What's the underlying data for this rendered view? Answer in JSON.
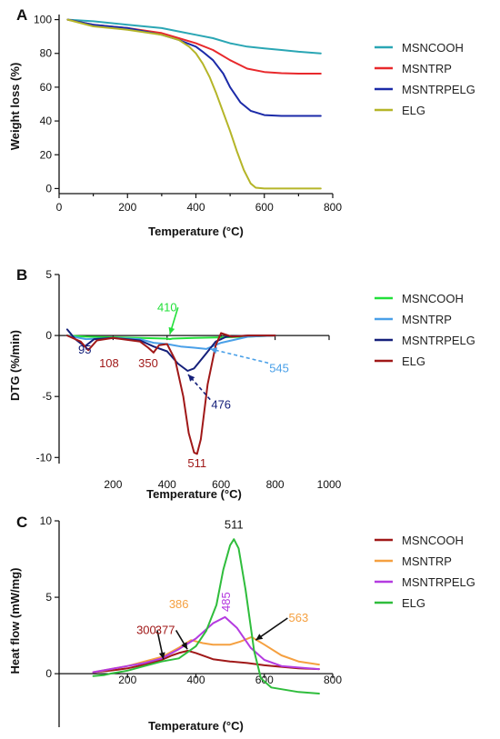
{
  "chart_data": [
    {
      "panel": "A",
      "type": "line",
      "xlabel": "Temperature (°C)",
      "ylabel": "Weight loss (%)",
      "xlim": [
        0,
        800
      ],
      "ylim": [
        -3,
        103
      ],
      "xticks": [
        0,
        200,
        400,
        600,
        800
      ],
      "yticks": [
        0,
        20,
        40,
        60,
        80,
        100
      ],
      "legend": "right",
      "series": [
        {
          "name": "MSNCOOH",
          "color": "#2aa6b4",
          "x": [
            25,
            100,
            200,
            300,
            350,
            400,
            450,
            500,
            550,
            600,
            650,
            700,
            765
          ],
          "y": [
            100,
            99,
            97,
            95,
            93,
            91,
            89,
            86,
            84,
            83,
            82,
            81,
            80
          ]
        },
        {
          "name": "MSNTRP",
          "color": "#e8292c",
          "x": [
            25,
            100,
            200,
            300,
            350,
            400,
            450,
            500,
            550,
            600,
            650,
            700,
            765
          ],
          "y": [
            100,
            97,
            95,
            92,
            89,
            86,
            82,
            76,
            71,
            69,
            68.3,
            68,
            68
          ]
        },
        {
          "name": "MSNTRPELG",
          "color": "#1b2aa8",
          "x": [
            25,
            100,
            200,
            300,
            350,
            400,
            420,
            450,
            480,
            500,
            530,
            560,
            600,
            650,
            700,
            765
          ],
          "y": [
            100,
            97,
            95,
            91,
            88,
            84,
            81,
            76,
            68,
            60,
            51,
            46,
            43.5,
            43,
            43,
            43
          ]
        },
        {
          "name": "ELG",
          "color": "#b5b528",
          "x": [
            25,
            100,
            200,
            300,
            350,
            380,
            400,
            420,
            440,
            460,
            480,
            500,
            520,
            540,
            560,
            575,
            600,
            700,
            765
          ],
          "y": [
            100,
            96,
            94,
            91,
            88,
            84,
            80,
            74,
            66,
            56,
            45,
            34,
            22,
            11,
            3,
            0.5,
            0,
            0,
            0
          ]
        }
      ]
    },
    {
      "panel": "B",
      "type": "line",
      "xlabel": "Temperature (°C)",
      "ylabel": "DTG (%/min)",
      "xlim": [
        0,
        1000
      ],
      "ylim": [
        -10.5,
        5
      ],
      "xticks": [
        200,
        400,
        600,
        800,
        1000
      ],
      "yticks": [
        -10,
        -5,
        0,
        5
      ],
      "legend": "right",
      "series": [
        {
          "name": "MSNCOOH",
          "color": "#22e03a",
          "x": [
            30,
            100,
            200,
            300,
            400,
            410,
            420,
            500,
            600,
            700,
            800
          ],
          "y": [
            0,
            -0.1,
            -0.15,
            -0.2,
            -0.25,
            -0.3,
            -0.25,
            -0.2,
            -0.15,
            -0.1,
            0
          ]
        },
        {
          "name": "MSNTRP",
          "color": "#4aa0e8",
          "x": [
            30,
            100,
            200,
            300,
            350,
            400,
            450,
            500,
            545,
            600,
            700,
            800
          ],
          "y": [
            0,
            -0.3,
            -0.2,
            -0.3,
            -0.6,
            -0.7,
            -0.9,
            -1.0,
            -1.1,
            -0.6,
            -0.1,
            0
          ]
        },
        {
          "name": "MSNTRPELG",
          "color": "#15207a",
          "x": [
            30,
            60,
            95,
            130,
            200,
            300,
            350,
            400,
            440,
            476,
            500,
            540,
            580,
            620,
            700,
            800
          ],
          "y": [
            0.5,
            -0.3,
            -0.9,
            -0.3,
            -0.2,
            -0.4,
            -0.9,
            -1.3,
            -2.3,
            -2.9,
            -2.7,
            -1.6,
            -0.5,
            -0.1,
            0,
            0
          ]
        },
        {
          "name": "ELG",
          "color": "#a01818",
          "x": [
            30,
            80,
            108,
            140,
            200,
            300,
            330,
            350,
            370,
            400,
            430,
            460,
            480,
            500,
            511,
            525,
            550,
            580,
            600,
            640,
            700,
            800
          ],
          "y": [
            0,
            -0.5,
            -1.2,
            -0.4,
            -0.2,
            -0.5,
            -1.0,
            -1.4,
            -0.8,
            -0.7,
            -2.0,
            -5.0,
            -8.0,
            -9.6,
            -9.7,
            -8.5,
            -4.0,
            -0.8,
            0.2,
            -0.1,
            0,
            0
          ]
        }
      ],
      "annotations": [
        {
          "text": "410",
          "color": "#22e03a",
          "x": 400,
          "y": 2.0,
          "arrow_to": [
            410,
            0.1
          ]
        },
        {
          "text": "95",
          "color": "#15207a",
          "x": 95,
          "y": -1.5
        },
        {
          "text": "108",
          "color": "#a01818",
          "x": 185,
          "y": -2.6
        },
        {
          "text": "350",
          "color": "#a01818",
          "x": 330,
          "y": -2.6
        },
        {
          "text": "545",
          "color": "#4aa0e8",
          "x": 815,
          "y": -3.0,
          "arrow_to": [
            560,
            -1.1
          ]
        },
        {
          "text": "476",
          "color": "#15207a",
          "x": 600,
          "y": -6.0,
          "arrow_to": [
            478,
            -3.2
          ]
        },
        {
          "text": "511",
          "color": "#a01818",
          "x": 511,
          "y": -10.8
        }
      ]
    },
    {
      "panel": "C",
      "type": "line",
      "xlabel": "Temperature (°C)",
      "ylabel": "Heat flow (mW/mg)",
      "xlim": [
        0,
        800
      ],
      "ylim": [
        -3.5,
        10
      ],
      "xticks": [
        200,
        400,
        600,
        800
      ],
      "yticks": [
        0,
        5,
        10
      ],
      "legend": "right",
      "series": [
        {
          "name": "MSNCOOH",
          "color": "#a01818",
          "x": [
            100,
            150,
            200,
            250,
            300,
            330,
            350,
            377,
            400,
            450,
            500,
            550,
            600,
            650,
            700,
            760
          ],
          "y": [
            0.1,
            0.2,
            0.35,
            0.6,
            0.9,
            1.2,
            1.35,
            1.5,
            1.35,
            0.95,
            0.8,
            0.7,
            0.55,
            0.45,
            0.35,
            0.3
          ]
        },
        {
          "name": "MSNTRP",
          "color": "#f5a040",
          "x": [
            100,
            150,
            200,
            250,
            300,
            350,
            386,
            420,
            450,
            500,
            530,
            563,
            600,
            650,
            700,
            760
          ],
          "y": [
            0.1,
            0.3,
            0.5,
            0.8,
            1.1,
            1.7,
            2.2,
            2.0,
            1.9,
            1.9,
            2.1,
            2.4,
            1.9,
            1.2,
            0.8,
            0.6
          ]
        },
        {
          "name": "MSNTRPELG",
          "color": "#b43be0",
          "x": [
            100,
            150,
            200,
            250,
            300,
            350,
            400,
            450,
            485,
            520,
            560,
            600,
            650,
            700,
            760
          ],
          "y": [
            0.1,
            0.3,
            0.5,
            0.7,
            1.0,
            1.6,
            2.3,
            3.3,
            3.7,
            3.0,
            1.7,
            0.9,
            0.5,
            0.4,
            0.3
          ]
        },
        {
          "name": "ELG",
          "color": "#2fbd3c",
          "x": [
            100,
            130,
            150,
            200,
            250,
            300,
            350,
            400,
            430,
            460,
            480,
            500,
            511,
            525,
            545,
            570,
            590,
            620,
            700,
            760
          ],
          "y": [
            -0.15,
            -0.1,
            0.0,
            0.2,
            0.5,
            0.8,
            1.0,
            1.8,
            2.8,
            4.5,
            6.8,
            8.4,
            8.8,
            8.2,
            5.5,
            1.5,
            -0.3,
            -0.9,
            -1.2,
            -1.3
          ]
        }
      ],
      "annotations": [
        {
          "text": "511",
          "color": "#111111",
          "x": 511,
          "y": 9.5
        },
        {
          "text": "386",
          "color": "#f5a040",
          "x": 350,
          "y": 4.3
        },
        {
          "text": "485",
          "color": "#b43be0",
          "x": 500,
          "y": 4.7,
          "rotated": true
        },
        {
          "text": "563",
          "color": "#f5a040",
          "x": 700,
          "y": 3.4,
          "arrow_to": [
            575,
            2.2
          ]
        },
        {
          "text": "300",
          "color": "#a01818",
          "x": 255,
          "y": 2.6,
          "arrow_to": [
            305,
            0.95
          ]
        },
        {
          "text": "377",
          "color": "#a01818",
          "x": 310,
          "y": 2.6,
          "arrow_to": [
            375,
            1.6
          ]
        }
      ]
    }
  ]
}
